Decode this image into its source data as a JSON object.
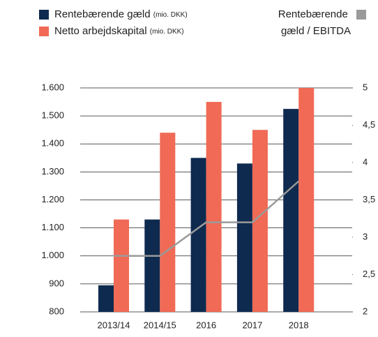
{
  "chart_data": {
    "type": "bar",
    "categories": [
      "2013/14",
      "2014/15",
      "2016",
      "2017",
      "2018"
    ],
    "series": [
      {
        "name": "Rentebærende gæld (mio. DKK)",
        "color": "#0e2a4f",
        "values": [
          895,
          1130,
          1350,
          1330,
          1525
        ]
      },
      {
        "name": "Netto arbejdskapital (mio. DKK)",
        "color": "#f06a55",
        "values": [
          1130,
          1440,
          1550,
          1450,
          1600
        ]
      },
      {
        "name": "Rentebærende gæld / EBITDA",
        "color": "#9a9a9a",
        "type": "line",
        "axis": "y2",
        "values": [
          2.75,
          2.75,
          3.2,
          3.2,
          3.75
        ]
      }
    ],
    "ylim": [
      800,
      1600
    ],
    "yticks": [
      {
        "value": 800,
        "label": "800"
      },
      {
        "value": 900,
        "label": "900"
      },
      {
        "value": 1000,
        "label": "1.000"
      },
      {
        "value": 1100,
        "label": "1.100"
      },
      {
        "value": 1200,
        "label": "1.200"
      },
      {
        "value": 1300,
        "label": "1.300"
      },
      {
        "value": 1400,
        "label": "1.400"
      },
      {
        "value": 1500,
        "label": "1.500"
      },
      {
        "value": 1600,
        "label": "1.600"
      }
    ],
    "y2lim": [
      2,
      5
    ],
    "y2ticks": [
      2,
      {
        "value": 2.5,
        "label": "2,5"
      },
      3,
      {
        "value": 3.5,
        "label": "3,5"
      },
      4,
      {
        "value": 4.5,
        "label": "4,5"
      },
      5
    ],
    "grid": true
  }
}
